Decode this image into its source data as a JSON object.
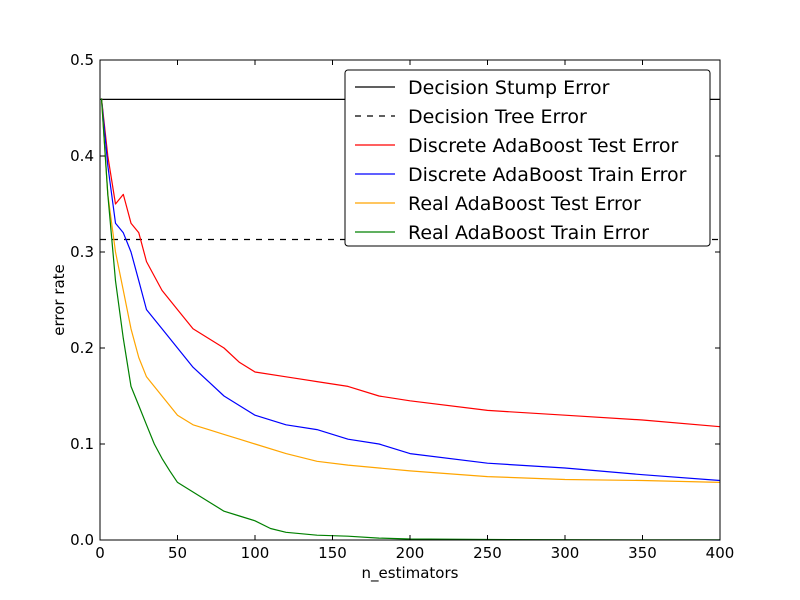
{
  "chart_data": {
    "type": "line",
    "title": "",
    "xlabel": "n_estimators",
    "ylabel": "error rate",
    "xlim": [
      0,
      400
    ],
    "ylim": [
      0.0,
      0.5
    ],
    "grid": false,
    "legend_position": "top-right",
    "x_ticks": [
      0,
      50,
      100,
      150,
      200,
      250,
      300,
      350,
      400
    ],
    "x_tick_labels": [
      "0",
      "50",
      "100",
      "150",
      "200",
      "250",
      "300",
      "350",
      "400"
    ],
    "y_ticks": [
      0.0,
      0.1,
      0.2,
      0.3,
      0.4,
      0.5
    ],
    "y_tick_labels": [
      "0.0",
      "0.1",
      "0.2",
      "0.3",
      "0.4",
      "0.5"
    ],
    "series": [
      {
        "name": "Decision Stump Error",
        "color": "#000000",
        "dash": "solid",
        "kind": "hline",
        "value": 0.459
      },
      {
        "name": "Decision Tree Error",
        "color": "#000000",
        "dash": "dashed",
        "kind": "hline",
        "value": 0.313
      },
      {
        "name": "Discrete AdaBoost Test Error",
        "color": "#ff0000",
        "dash": "solid",
        "kind": "curve",
        "x": [
          1,
          5,
          10,
          15,
          20,
          25,
          30,
          40,
          50,
          60,
          70,
          80,
          90,
          100,
          120,
          140,
          160,
          180,
          200,
          250,
          300,
          350,
          400
        ],
        "y": [
          0.46,
          0.4,
          0.35,
          0.36,
          0.33,
          0.32,
          0.29,
          0.26,
          0.24,
          0.22,
          0.21,
          0.2,
          0.185,
          0.175,
          0.17,
          0.165,
          0.16,
          0.15,
          0.145,
          0.135,
          0.13,
          0.125,
          0.118
        ]
      },
      {
        "name": "Discrete AdaBoost Train Error",
        "color": "#0000ff",
        "dash": "solid",
        "kind": "curve",
        "x": [
          1,
          5,
          10,
          15,
          20,
          25,
          30,
          40,
          50,
          60,
          70,
          80,
          90,
          100,
          120,
          140,
          160,
          180,
          200,
          250,
          300,
          350,
          400
        ],
        "y": [
          0.46,
          0.39,
          0.33,
          0.32,
          0.3,
          0.27,
          0.24,
          0.22,
          0.2,
          0.18,
          0.165,
          0.15,
          0.14,
          0.13,
          0.12,
          0.115,
          0.105,
          0.1,
          0.09,
          0.08,
          0.075,
          0.068,
          0.062
        ]
      },
      {
        "name": "Real AdaBoost Test Error",
        "color": "#ffa500",
        "dash": "solid",
        "kind": "curve",
        "x": [
          1,
          5,
          10,
          15,
          20,
          25,
          30,
          40,
          50,
          60,
          70,
          80,
          90,
          100,
          120,
          140,
          160,
          180,
          200,
          250,
          300,
          350,
          400
        ],
        "y": [
          0.46,
          0.36,
          0.3,
          0.26,
          0.22,
          0.19,
          0.17,
          0.15,
          0.13,
          0.12,
          0.115,
          0.11,
          0.105,
          0.1,
          0.09,
          0.082,
          0.078,
          0.075,
          0.072,
          0.066,
          0.063,
          0.062,
          0.06
        ]
      },
      {
        "name": "Real AdaBoost Train Error",
        "color": "#008000",
        "dash": "solid",
        "kind": "curve",
        "x": [
          1,
          5,
          10,
          15,
          20,
          25,
          30,
          35,
          40,
          45,
          50,
          60,
          70,
          80,
          90,
          100,
          110,
          120,
          140,
          160,
          180,
          200,
          250,
          300,
          350,
          400
        ],
        "y": [
          0.46,
          0.36,
          0.27,
          0.21,
          0.16,
          0.14,
          0.12,
          0.1,
          0.085,
          0.072,
          0.06,
          0.05,
          0.04,
          0.03,
          0.025,
          0.02,
          0.012,
          0.008,
          0.005,
          0.004,
          0.002,
          0.001,
          0.0005,
          0.0003,
          0.0002,
          0.0001
        ]
      }
    ]
  }
}
